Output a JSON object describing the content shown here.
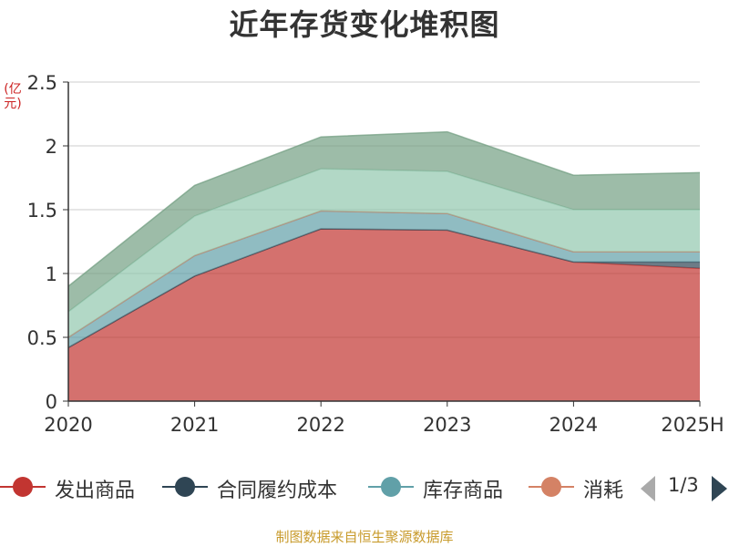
{
  "chart_data": {
    "type": "area",
    "stacked": true,
    "title": "近年存货变化堆积图",
    "ylabel": "(亿元)",
    "categories": [
      "2020",
      "2021",
      "2022",
      "2023",
      "2024",
      "2025H"
    ],
    "ylim": [
      0,
      2.5
    ],
    "yticks": [
      "0",
      "0.5",
      "1",
      "1.5",
      "2",
      "2.5"
    ],
    "grid": true,
    "legend_position": "bottom",
    "series": [
      {
        "name": "发出商品",
        "color": "#c23531",
        "values": [
          0.42,
          0.98,
          1.35,
          1.34,
          1.09,
          1.04
        ]
      },
      {
        "name": "合同履约成本",
        "color": "#2f4554",
        "values": [
          0.0,
          0.0,
          0.0,
          0.0,
          0.0,
          0.05
        ]
      },
      {
        "name": "库存商品",
        "color": "#61a0a8",
        "values": [
          0.08,
          0.16,
          0.14,
          0.13,
          0.08,
          0.08
        ]
      },
      {
        "name": "消耗",
        "color": "#d48265",
        "values": [
          0.0,
          0.0,
          0.0,
          0.0,
          0.0,
          0.0
        ]
      },
      {
        "name": "",
        "color": "#91c7ae",
        "values": [
          0.2,
          0.31,
          0.33,
          0.33,
          0.33,
          0.33
        ]
      },
      {
        "name": "",
        "color": "#749f83",
        "values": [
          0.2,
          0.24,
          0.25,
          0.31,
          0.27,
          0.29
        ]
      }
    ]
  },
  "legend": {
    "items": [
      {
        "label": "发出商品",
        "color": "#c23531"
      },
      {
        "label": "合同履约成本",
        "color": "#2f4554"
      },
      {
        "label": "库存商品",
        "color": "#61a0a8"
      },
      {
        "label": "消耗",
        "color": "#d48265"
      }
    ],
    "page_text": "1/3",
    "prev_color": "#aaaaaa",
    "next_color": "#2f4554"
  },
  "source_text": "制图数据来自恒生聚源数据库"
}
